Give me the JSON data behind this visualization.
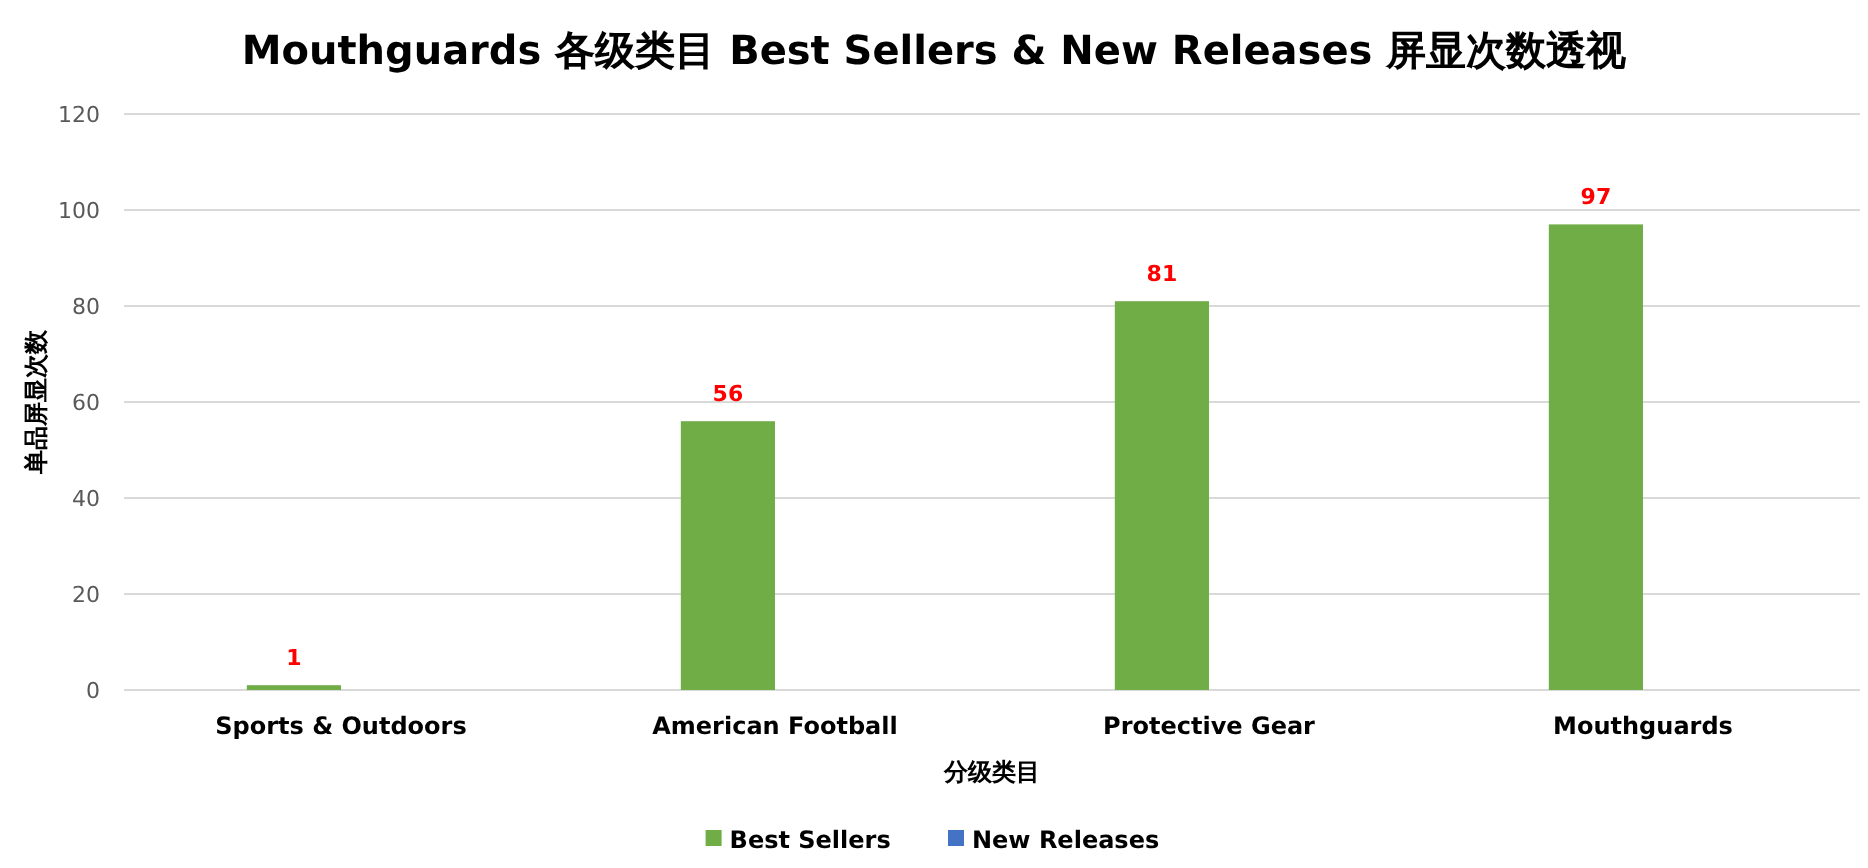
{
  "chart_data": {
    "type": "bar",
    "title": "Mouthguards 各级类目 Best Sellers & New Releases 屏显次数透视",
    "xlabel": "分级类目",
    "ylabel": "单品屏显次数",
    "categories": [
      "Sports & Outdoors",
      "American Football",
      "Protective Gear",
      "Mouthguards"
    ],
    "series": [
      {
        "name": "Best Sellers",
        "color": "#70ad47",
        "values": [
          1,
          56,
          81,
          97
        ],
        "value_labels": [
          "1",
          "56",
          "81",
          "97"
        ]
      },
      {
        "name": "New Releases",
        "color": "#4472c4",
        "values": [
          0,
          0,
          0,
          0
        ]
      }
    ],
    "ylim": [
      0,
      120
    ],
    "yticks": [
      0,
      20,
      40,
      60,
      80,
      100,
      120
    ],
    "grid": "y",
    "legend": "bottom"
  }
}
